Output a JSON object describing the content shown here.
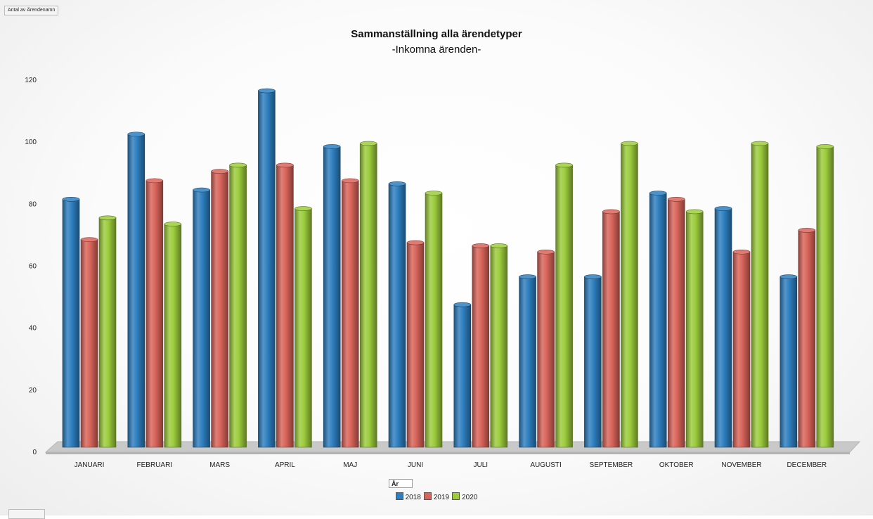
{
  "field_button_measure": "Antal av Ärendenamn",
  "legend_field_button": "År",
  "chart_data": {
    "type": "bar",
    "title": "Sammanställning alla ärendetyper",
    "subtitle": "-Inkomna ärenden-",
    "xlabel": "",
    "ylabel": "",
    "ylim": [
      0,
      120
    ],
    "yticks": [
      0,
      20,
      40,
      60,
      80,
      100,
      120
    ],
    "categories": [
      "JANUARI",
      "FEBRUARI",
      "MARS",
      "APRIL",
      "MAJ",
      "JUNI",
      "JULI",
      "AUGUSTI",
      "SEPTEMBER",
      "OKTOBER",
      "NOVEMBER",
      "DECEMBER"
    ],
    "series": [
      {
        "name": "2018",
        "color": "#2e7fc0",
        "values": [
          80,
          101,
          83,
          115,
          97,
          85,
          46,
          55,
          55,
          82,
          77,
          55
        ]
      },
      {
        "name": "2019",
        "color": "#d9645a",
        "values": [
          67,
          86,
          89,
          91,
          86,
          66,
          65,
          63,
          76,
          80,
          63,
          70
        ]
      },
      {
        "name": "2020",
        "color": "#9ccc3c",
        "values": [
          74,
          72,
          91,
          77,
          98,
          82,
          65,
          91,
          98,
          76,
          98,
          97
        ]
      }
    ],
    "legend_position": "bottom",
    "grid": false
  }
}
